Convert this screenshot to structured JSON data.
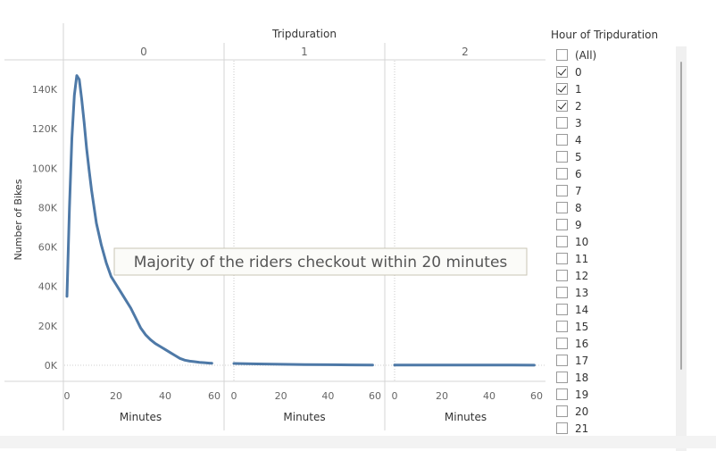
{
  "chart_data": {
    "type": "line",
    "title": "",
    "column_header": "Tripduration",
    "ylabel": "Number of Bikes",
    "xlabel": "Minutes",
    "ylim": [
      0,
      150000
    ],
    "yticks": [
      0,
      20000,
      40000,
      60000,
      80000,
      100000,
      120000,
      140000
    ],
    "ytick_labels": [
      "0K",
      "20K",
      "40K",
      "60K",
      "80K",
      "100K",
      "120K",
      "140K"
    ],
    "xlim": [
      0,
      60
    ],
    "xticks": [
      0,
      20,
      40,
      60
    ],
    "xtick_labels": [
      "0",
      "20",
      "40",
      "60"
    ],
    "panels": [
      {
        "header": "0",
        "x": [
          0,
          1,
          2,
          3,
          4,
          5,
          6,
          7,
          8,
          9,
          10,
          12,
          14,
          16,
          18,
          20,
          22,
          24,
          26,
          28,
          30,
          32,
          34,
          36,
          38,
          40,
          42,
          44,
          46,
          48,
          50,
          52,
          54,
          56,
          58,
          59
        ],
        "y": [
          35000,
          80000,
          115000,
          137000,
          147000,
          145000,
          135000,
          123000,
          110000,
          99000,
          89000,
          72000,
          61000,
          52000,
          45000,
          41000,
          37000,
          33000,
          29000,
          24000,
          19000,
          15500,
          13000,
          11000,
          9500,
          8000,
          6500,
          5000,
          3500,
          2600,
          2100,
          1800,
          1500,
          1300,
          1100,
          1000
        ]
      },
      {
        "header": "1",
        "x": [
          0,
          10,
          20,
          30,
          40,
          50,
          59
        ],
        "y": [
          900,
          700,
          500,
          350,
          250,
          180,
          130
        ]
      },
      {
        "header": "2",
        "x": [
          0,
          10,
          20,
          30,
          40,
          50,
          59
        ],
        "y": [
          150,
          120,
          100,
          90,
          80,
          70,
          60
        ]
      }
    ],
    "annotation": "Majority of the riders checkout within 20 minutes",
    "line_color": "#4e79a7",
    "grid": false
  },
  "filter": {
    "title": "Hour of Tripduration",
    "items": [
      {
        "label": "(All)",
        "checked": false
      },
      {
        "label": "0",
        "checked": true
      },
      {
        "label": "1",
        "checked": true
      },
      {
        "label": "2",
        "checked": true
      },
      {
        "label": "3",
        "checked": false
      },
      {
        "label": "4",
        "checked": false
      },
      {
        "label": "5",
        "checked": false
      },
      {
        "label": "6",
        "checked": false
      },
      {
        "label": "7",
        "checked": false
      },
      {
        "label": "8",
        "checked": false
      },
      {
        "label": "9",
        "checked": false
      },
      {
        "label": "10",
        "checked": false
      },
      {
        "label": "11",
        "checked": false
      },
      {
        "label": "12",
        "checked": false
      },
      {
        "label": "13",
        "checked": false
      },
      {
        "label": "14",
        "checked": false
      },
      {
        "label": "15",
        "checked": false
      },
      {
        "label": "16",
        "checked": false
      },
      {
        "label": "17",
        "checked": false
      },
      {
        "label": "18",
        "checked": false
      },
      {
        "label": "19",
        "checked": false
      },
      {
        "label": "20",
        "checked": false
      },
      {
        "label": "21",
        "checked": false
      }
    ]
  }
}
